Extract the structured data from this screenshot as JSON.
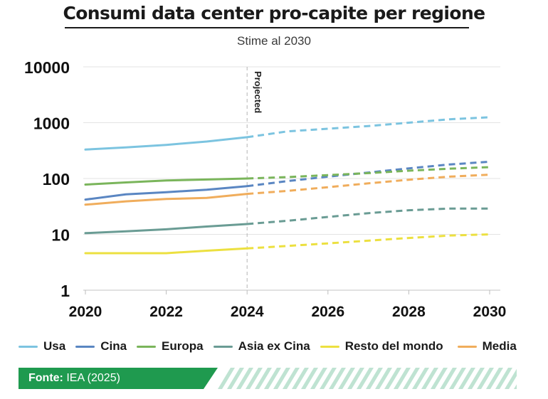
{
  "title": "Consumi data center pro-capite per regione",
  "subtitle": "Stime al 2030",
  "source": {
    "label": "Fonte:",
    "text": "IEA (2025)"
  },
  "chart_data": {
    "type": "line",
    "scale": "log",
    "ylim": [
      1,
      10000
    ],
    "yticks": [
      1,
      10,
      100,
      1000,
      10000
    ],
    "ytick_labels": [
      "1",
      "10",
      "100",
      "1000",
      "10000"
    ],
    "xlim": [
      2020,
      2030
    ],
    "xticks": [
      2020,
      2022,
      2024,
      2026,
      2028,
      2030
    ],
    "xtick_labels": [
      "2020",
      "2022",
      "2024",
      "2026",
      "2028",
      "2030"
    ],
    "projection_start": 2024,
    "projection_label": "Projected",
    "legend_position": "bottom",
    "series": [
      {
        "name": "Usa",
        "color": "#7cc4e0",
        "x": [
          2020,
          2021,
          2022,
          2023,
          2024,
          2025,
          2026,
          2027,
          2028,
          2029,
          2030
        ],
        "values": [
          330,
          360,
          400,
          460,
          550,
          700,
          780,
          870,
          1000,
          1150,
          1250
        ]
      },
      {
        "name": "Cina",
        "color": "#5a86c2",
        "x": [
          2020,
          2021,
          2022,
          2023,
          2024,
          2025,
          2026,
          2027,
          2028,
          2029,
          2030
        ],
        "values": [
          42,
          52,
          57,
          63,
          73,
          90,
          108,
          128,
          152,
          178,
          200
        ]
      },
      {
        "name": "Europa",
        "color": "#7ab55b",
        "x": [
          2020,
          2021,
          2022,
          2023,
          2024,
          2025,
          2026,
          2027,
          2028,
          2029,
          2030
        ],
        "values": [
          78,
          85,
          92,
          96,
          100,
          106,
          115,
          125,
          138,
          150,
          160
        ]
      },
      {
        "name": "Asia ex Cina",
        "color": "#6a9c94",
        "x": [
          2020,
          2021,
          2022,
          2023,
          2024,
          2025,
          2026,
          2027,
          2028,
          2029,
          2030
        ],
        "values": [
          10.5,
          11.3,
          12.3,
          13.8,
          15.3,
          17.5,
          20.5,
          24,
          27,
          29,
          29
        ]
      },
      {
        "name": "Resto del mondo",
        "color": "#ece040",
        "x": [
          2020,
          2021,
          2022,
          2023,
          2024,
          2025,
          2026,
          2027,
          2028,
          2029,
          2030
        ],
        "values": [
          4.6,
          4.6,
          4.6,
          5.1,
          5.6,
          6.2,
          6.9,
          7.7,
          8.6,
          9.5,
          10
        ]
      },
      {
        "name": "Media",
        "color": "#f0ad5c",
        "x": [
          2020,
          2021,
          2022,
          2023,
          2024,
          2025,
          2026,
          2027,
          2028,
          2029,
          2030
        ],
        "values": [
          34,
          39,
          43,
          45,
          53,
          60,
          70,
          82,
          95,
          108,
          117
        ]
      }
    ]
  }
}
